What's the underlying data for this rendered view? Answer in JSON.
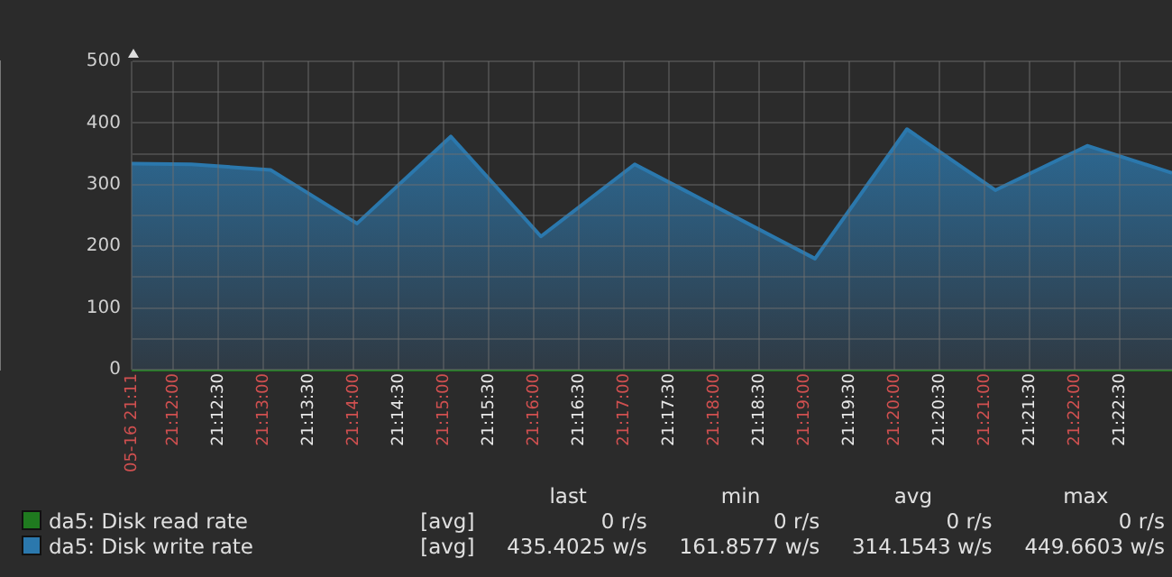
{
  "chart_data": {
    "type": "area",
    "x": [
      21.192333,
      21.203333,
      21.218,
      21.234,
      21.251333,
      21.268,
      21.285333,
      21.318667,
      21.335667,
      21.352,
      21.369,
      21.384667
    ],
    "series": [
      {
        "name": "da5: Disk read rate",
        "type": "line",
        "color": "#1f7a1f",
        "values": [
          0,
          0,
          0,
          0,
          0,
          0,
          0,
          0,
          0,
          0,
          0,
          0
        ]
      },
      {
        "name": "da5: Disk write rate",
        "color": "#2b78ad",
        "values": [
          334,
          333,
          324,
          237,
          378,
          216,
          333,
          180,
          390,
          291,
          363,
          319
        ]
      }
    ],
    "xlim": [
      21.192333,
      21.384667
    ],
    "xticks": [
      {
        "value": 21.192333,
        "label": "05-16 21:11"
      },
      {
        "value": 21.2,
        "label": "21:12:00"
      },
      {
        "value": 21.208333,
        "label": "21:12:30"
      },
      {
        "value": 21.216667,
        "label": "21:13:00"
      },
      {
        "value": 21.225,
        "label": "21:13:30"
      },
      {
        "value": 21.233333,
        "label": "21:14:00"
      },
      {
        "value": 21.241667,
        "label": "21:14:30"
      },
      {
        "value": 21.25,
        "label": "21:15:00"
      },
      {
        "value": 21.258333,
        "label": "21:15:30"
      },
      {
        "value": 21.266667,
        "label": "21:16:00"
      },
      {
        "value": 21.275,
        "label": "21:16:30"
      },
      {
        "value": 21.283333,
        "label": "21:17:00"
      },
      {
        "value": 21.291667,
        "label": "21:17:30"
      },
      {
        "value": 21.3,
        "label": "21:18:00"
      },
      {
        "value": 21.308333,
        "label": "21:18:30"
      },
      {
        "value": 21.316667,
        "label": "21:19:00"
      },
      {
        "value": 21.325,
        "label": "21:19:30"
      },
      {
        "value": 21.333333,
        "label": "21:20:00"
      },
      {
        "value": 21.341667,
        "label": "21:20:30"
      },
      {
        "value": 21.35,
        "label": "21:21:00"
      },
      {
        "value": 21.358333,
        "label": "21:21:30"
      },
      {
        "value": 21.366667,
        "label": "21:22:00"
      },
      {
        "value": 21.375,
        "label": "21:22:30"
      }
    ],
    "ylim": [
      0,
      500
    ],
    "yticks": [
      0,
      {
        "value": 50,
        "label": null
      },
      100,
      {
        "value": 150,
        "label": null
      },
      200,
      {
        "value": 250,
        "label": null
      },
      300,
      {
        "value": 350,
        "label": null
      },
      400,
      {
        "value": 450,
        "label": null
      },
      500
    ],
    "grid": true,
    "legend": "bottom",
    "annotations": [
      "last",
      "min",
      "avg",
      "max",
      "[avg]",
      "0 r/s",
      "0 r/s",
      "0 r/s",
      "0 r/s",
      "[avg]",
      "435.4025 w/s",
      "161.8577 w/s",
      "314.1543 w/s",
      "449.6603 w/s"
    ]
  }
}
